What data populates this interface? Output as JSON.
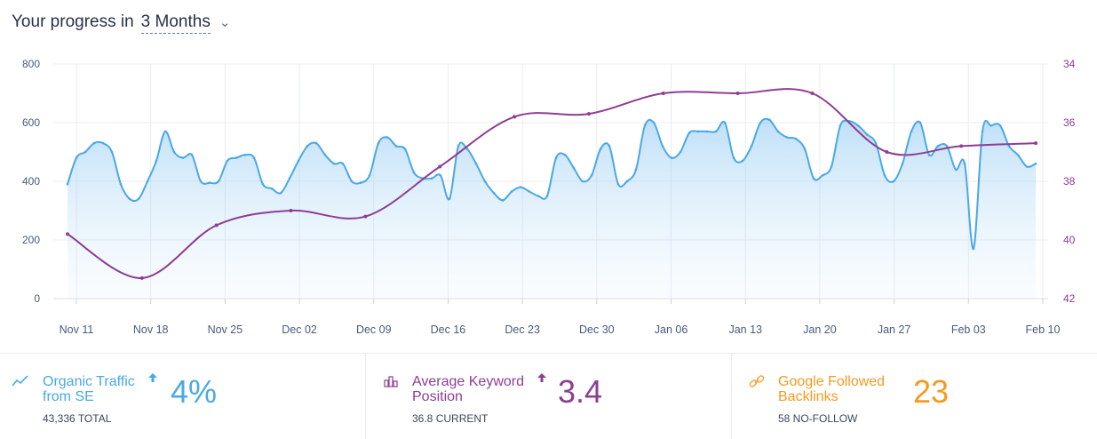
{
  "header": {
    "lead": "Your progress in",
    "period": "3 Months"
  },
  "colors": {
    "traffic": "#4aa8e6",
    "position": "#8e3d92",
    "backlinks": "#f59a1e",
    "grid": "#e8ecf2"
  },
  "chart_data": {
    "type": "line",
    "x_labels": [
      "Nov 11",
      "Nov 18",
      "Nov 25",
      "Dec 02",
      "Dec 09",
      "Dec 16",
      "Dec 23",
      "Dec 30",
      "Jan 06",
      "Jan 13",
      "Jan 20",
      "Jan 27",
      "Feb 03",
      "Feb 10"
    ],
    "y_left": {
      "ticks": [
        0,
        200,
        400,
        600,
        800
      ],
      "min": 0,
      "max": 800
    },
    "y_right": {
      "ticks": [
        34,
        36,
        38,
        40,
        42
      ],
      "min": 34,
      "max": 42,
      "inverted": true
    },
    "grid": true,
    "series": [
      {
        "axis": "left",
        "style": "area",
        "values": [
          390,
          480,
          500,
          530,
          530,
          500,
          390,
          340,
          340,
          400,
          470,
          570,
          500,
          480,
          490,
          400,
          395,
          400,
          470,
          480,
          490,
          480,
          390,
          375,
          360,
          410,
          470,
          520,
          530,
          490,
          460,
          460,
          400,
          395,
          420,
          530,
          550,
          520,
          510,
          430,
          410,
          410,
          420,
          340,
          520,
          510,
          460,
          400,
          360,
          335,
          365,
          380,
          365,
          350,
          350,
          480,
          490,
          445,
          400,
          420,
          510,
          520,
          390,
          400,
          440,
          590,
          600,
          520,
          480,
          500,
          565,
          570,
          570,
          570,
          600,
          480,
          470,
          520,
          600,
          610,
          570,
          550,
          545,
          510,
          410,
          420,
          450,
          590,
          605,
          590,
          560,
          530,
          420,
          400,
          460,
          570,
          600,
          490,
          520,
          520,
          440,
          460,
          170,
          570,
          590,
          590,
          520,
          490,
          450,
          460
        ]
      },
      {
        "axis": "right",
        "points": [
          [
            0,
            39.8
          ],
          [
            1,
            41.3
          ],
          [
            2,
            39.5
          ],
          [
            3,
            39.0
          ],
          [
            4,
            39.2
          ],
          [
            5,
            37.5
          ],
          [
            6,
            35.8
          ],
          [
            7,
            35.7
          ],
          [
            8,
            35.0
          ],
          [
            9,
            35.0
          ],
          [
            10,
            35.0
          ],
          [
            11,
            37.0
          ],
          [
            12,
            36.8
          ],
          [
            13,
            36.7
          ]
        ]
      }
    ]
  },
  "stats": [
    {
      "title": "Organic Traffic from SE",
      "value": "4%",
      "sub": "43,336 TOTAL",
      "icon": "trend-line-icon",
      "trend": "up"
    },
    {
      "title": "Average Keyword Position",
      "value": "3.4",
      "sub": "36.8 CURRENT",
      "icon": "bar-chart-icon",
      "trend": "up"
    },
    {
      "title": "Google Followed Backlinks",
      "value": "23",
      "sub": "58 NO-FOLLOW",
      "icon": "link-icon"
    }
  ]
}
